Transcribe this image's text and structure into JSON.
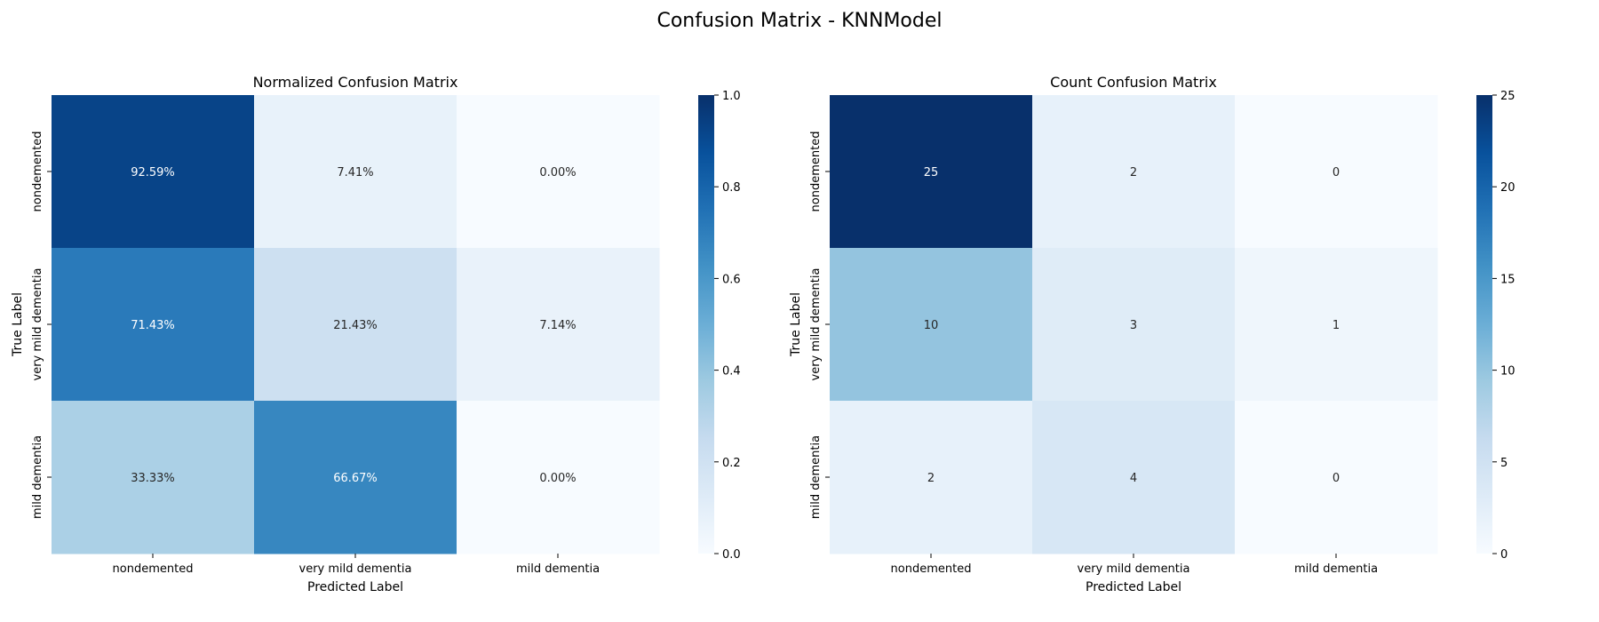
{
  "figure": {
    "title": "Confusion Matrix - KNNModel"
  },
  "chart_data": [
    {
      "type": "heatmap",
      "title": "Normalized Confusion Matrix",
      "xlabel": "Predicted Label",
      "ylabel": "True Label",
      "x_categories": [
        "nondemented",
        "very mild dementia",
        "mild dementia"
      ],
      "y_categories": [
        "nondemented",
        "very mild dementia",
        "mild dementia"
      ],
      "values": [
        [
          0.9259,
          0.0741,
          0.0
        ],
        [
          0.7143,
          0.2143,
          0.0714
        ],
        [
          0.3333,
          0.6667,
          0.0
        ]
      ],
      "annotations": [
        [
          "92.59%",
          "7.41%",
          "0.00%"
        ],
        [
          "71.43%",
          "21.43%",
          "7.14%"
        ],
        [
          "33.33%",
          "66.67%",
          "0.00%"
        ]
      ],
      "colorbar": {
        "range": [
          0.0,
          1.0
        ],
        "ticks": [
          "0.0",
          "0.2",
          "0.4",
          "0.6",
          "0.8",
          "1.0"
        ]
      },
      "colormap": "Blues"
    },
    {
      "type": "heatmap",
      "title": "Count Confusion Matrix",
      "xlabel": "Predicted Label",
      "ylabel": "True Label",
      "x_categories": [
        "nondemented",
        "very mild dementia",
        "mild dementia"
      ],
      "y_categories": [
        "nondemented",
        "very mild dementia",
        "mild dementia"
      ],
      "values": [
        [
          25,
          2,
          0
        ],
        [
          10,
          3,
          1
        ],
        [
          2,
          4,
          0
        ]
      ],
      "annotations": [
        [
          "25",
          "2",
          "0"
        ],
        [
          "10",
          "3",
          "1"
        ],
        [
          "2",
          "4",
          "0"
        ]
      ],
      "colorbar": {
        "range": [
          0,
          25
        ],
        "ticks": [
          "0",
          "5",
          "10",
          "15",
          "20",
          "25"
        ]
      },
      "colormap": "Blues"
    }
  ]
}
